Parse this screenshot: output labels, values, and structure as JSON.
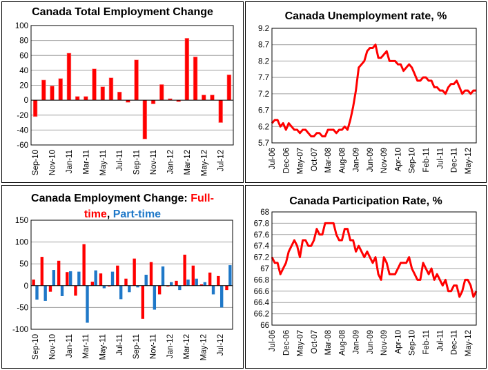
{
  "chart_data": [
    {
      "id": "total",
      "type": "bar",
      "title": "Canada Total Employment Change",
      "x_tick_labels": [
        "Sep-10",
        "Nov-10",
        "Jan-11",
        "Mar-11",
        "May-11",
        "Jul-11",
        "Sep-11",
        "Nov-11",
        "Jan-12",
        "Mar-12",
        "May-12",
        "Jul-12"
      ],
      "label_every": 2,
      "values": [
        -22,
        27,
        19,
        29,
        63,
        5,
        5,
        42,
        18,
        30,
        11,
        -3,
        54,
        -52,
        -5,
        21,
        2,
        -2,
        83,
        58,
        7,
        7,
        -30,
        34
      ],
      "ylim": [
        -60,
        100
      ],
      "yticks": [
        "100",
        "80",
        "60",
        "40",
        "20",
        "0",
        "-20",
        "-40",
        "-60"
      ],
      "color": "#ff0000",
      "grid": true
    },
    {
      "id": "unemp",
      "type": "line",
      "title": "Canada Unemployment rate, %",
      "x_tick_labels": [
        "Jul-06",
        "Dec-06",
        "May-07",
        "Oct-07",
        "Mar-08",
        "Aug-08",
        "Jan-09",
        "Jun-09",
        "Nov-09",
        "Apr-10",
        "Sep-10",
        "Feb-11",
        "Jul-11",
        "Dec-11",
        "May-12"
      ],
      "label_every": 5,
      "values": [
        6.3,
        6.4,
        6.4,
        6.2,
        6.3,
        6.1,
        6.3,
        6.2,
        6.1,
        6.1,
        6.0,
        6.1,
        6.1,
        6.0,
        5.9,
        5.9,
        6.0,
        6.0,
        5.9,
        5.9,
        6.1,
        6.1,
        6.1,
        6.0,
        6.1,
        6.1,
        6.2,
        6.1,
        6.4,
        6.8,
        7.3,
        8.0,
        8.1,
        8.2,
        8.5,
        8.6,
        8.6,
        8.7,
        8.3,
        8.3,
        8.4,
        8.5,
        8.2,
        8.2,
        8.2,
        8.1,
        8.1,
        7.9,
        8.0,
        8.1,
        8.0,
        7.8,
        7.6,
        7.6,
        7.7,
        7.7,
        7.6,
        7.6,
        7.4,
        7.4,
        7.3,
        7.3,
        7.2,
        7.4,
        7.5,
        7.5,
        7.6,
        7.4,
        7.2,
        7.3,
        7.3,
        7.2,
        7.3,
        7.3
      ],
      "ylim": [
        5.7,
        9.2
      ],
      "yticks": [
        "9.2",
        "8.7",
        "8.2",
        "7.7",
        "7.2",
        "6.7",
        "6.2",
        "5.7"
      ],
      "color": "#ff0000",
      "grid": true
    },
    {
      "id": "ftpt",
      "type": "bar",
      "title_parts": [
        {
          "text": "Canada Employment Change: ",
          "color": "#000000"
        },
        {
          "text": "Full-",
          "color": "#ff0000"
        },
        {
          "text": "time",
          "color": "#ff0000"
        },
        {
          "text": ", ",
          "color": "#000000"
        },
        {
          "text": "Part-time",
          "color": "#1f78c8"
        }
      ],
      "x_tick_labels": [
        "Sep-10",
        "Nov-10",
        "Jan-11",
        "Mar-11",
        "May-11",
        "Jul-11",
        "Sep-11",
        "Nov-11",
        "Jan-12",
        "Mar-12",
        "May-12",
        "Jul-12"
      ],
      "label_every": 2,
      "series": [
        {
          "name": "Full-time",
          "color": "#ff0000",
          "values": [
            14,
            66,
            -14,
            57,
            31,
            -23,
            95,
            9,
            28,
            -2,
            46,
            16,
            62,
            -76,
            54,
            -20,
            -2,
            11,
            71,
            46,
            3,
            30,
            22,
            -10
          ]
        },
        {
          "name": "Part-time",
          "color": "#1f78c8",
          "values": [
            -32,
            -35,
            36,
            -24,
            33,
            32,
            -85,
            35,
            -6,
            32,
            -31,
            -15,
            -4,
            25,
            -55,
            44,
            8,
            -10,
            14,
            16,
            8,
            -20,
            -50,
            47
          ]
        }
      ],
      "ylim": [
        -100,
        150
      ],
      "yticks": [
        "150",
        "100",
        "50",
        "0",
        "-50",
        "-100"
      ],
      "grid": true
    },
    {
      "id": "part",
      "type": "line",
      "title": "Canada Participation Rate, %",
      "x_tick_labels": [
        "Jul-06",
        "Dec-06",
        "May-07",
        "Oct-07",
        "Mar-08",
        "Aug-08",
        "Jan-09",
        "Jun-09",
        "Nov-09",
        "Apr-10",
        "Sep-10",
        "Feb-11",
        "Jul-11",
        "Dec-11",
        "May-12"
      ],
      "label_every": 5,
      "values": [
        67.2,
        67.1,
        67.1,
        66.9,
        67.0,
        67.1,
        67.3,
        67.4,
        67.5,
        67.4,
        67.2,
        67.5,
        67.5,
        67.4,
        67.4,
        67.5,
        67.7,
        67.6,
        67.6,
        67.8,
        67.8,
        67.8,
        67.8,
        67.6,
        67.5,
        67.5,
        67.7,
        67.7,
        67.5,
        67.5,
        67.3,
        67.4,
        67.3,
        67.2,
        67.3,
        67.2,
        67.1,
        67.2,
        66.9,
        66.8,
        67.2,
        67.1,
        66.9,
        66.9,
        66.9,
        67.0,
        67.1,
        67.1,
        67.1,
        67.2,
        67.0,
        66.9,
        66.8,
        66.8,
        67.1,
        67.0,
        66.9,
        67.0,
        66.8,
        66.9,
        66.8,
        66.7,
        66.8,
        66.6,
        66.6,
        66.7,
        66.7,
        66.5,
        66.6,
        66.8,
        66.8,
        66.7,
        66.5,
        66.6
      ],
      "ylim": [
        66,
        68
      ],
      "yticks": [
        "68",
        "67.8",
        "67.6",
        "67.4",
        "67.2",
        "67",
        "66.8",
        "66.6",
        "66.4",
        "66.2",
        "66"
      ],
      "color": "#ff0000",
      "grid": true
    }
  ]
}
